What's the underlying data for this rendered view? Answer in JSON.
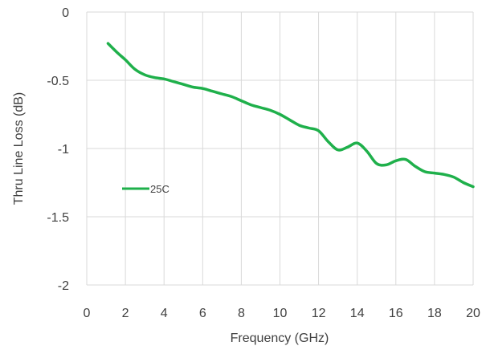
{
  "chart_data": {
    "type": "line",
    "title": "",
    "xlabel": "Frequency (GHz)",
    "ylabel": "Thru Line Loss (dB)",
    "xlim": [
      0,
      20
    ],
    "ylim": [
      -2,
      0
    ],
    "x_ticks": [
      "0",
      "2",
      "4",
      "6",
      "8",
      "10",
      "12",
      "14",
      "16",
      "18",
      "20"
    ],
    "y_ticks": [
      "0",
      "-0.5",
      "-1",
      "-1.5",
      "-2"
    ],
    "grid": "vertical",
    "legend_position": "left",
    "series": [
      {
        "name": "25C",
        "color": "#1fb04b",
        "x": [
          1.1,
          1.6,
          2.0,
          2.5,
          3.0,
          3.5,
          4.0,
          4.5,
          5.0,
          5.5,
          6.0,
          6.5,
          7.0,
          7.5,
          8.0,
          8.5,
          9.0,
          9.5,
          10.0,
          10.5,
          11.0,
          11.5,
          12.0,
          12.5,
          13.0,
          13.5,
          14.0,
          14.5,
          15.0,
          15.5,
          16.0,
          16.5,
          17.0,
          17.5,
          18.0,
          18.5,
          19.0,
          19.5,
          20.0
        ],
        "y": [
          -0.23,
          -0.3,
          -0.35,
          -0.42,
          -0.46,
          -0.48,
          -0.49,
          -0.51,
          -0.53,
          -0.55,
          -0.56,
          -0.58,
          -0.6,
          -0.62,
          -0.65,
          -0.68,
          -0.7,
          -0.72,
          -0.75,
          -0.79,
          -0.83,
          -0.85,
          -0.87,
          -0.95,
          -1.01,
          -0.99,
          -0.96,
          -1.02,
          -1.11,
          -1.12,
          -1.09,
          -1.08,
          -1.13,
          -1.17,
          -1.18,
          -1.19,
          -1.21,
          -1.25,
          -1.28
        ]
      }
    ]
  }
}
